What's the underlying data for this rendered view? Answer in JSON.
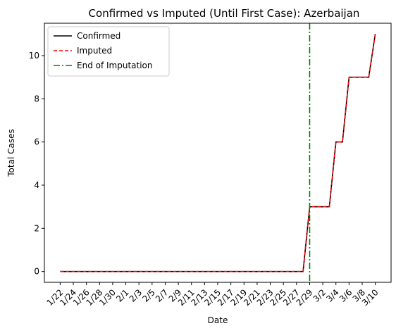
{
  "chart_data": {
    "type": "line",
    "title": "Confirmed vs Imputed (Until First Case): Azerbaijan",
    "xlabel": "Date",
    "ylabel": "Total Cases",
    "ylim": [
      -0.5,
      11.5
    ],
    "yticks": [
      0,
      2,
      4,
      6,
      8,
      10
    ],
    "x": [
      "1/22",
      "1/23",
      "1/24",
      "1/25",
      "1/26",
      "1/27",
      "1/28",
      "1/29",
      "1/30",
      "1/31",
      "2/1",
      "2/2",
      "2/3",
      "2/4",
      "2/5",
      "2/6",
      "2/7",
      "2/8",
      "2/9",
      "2/10",
      "2/11",
      "2/12",
      "2/13",
      "2/14",
      "2/15",
      "2/16",
      "2/17",
      "2/18",
      "2/19",
      "2/20",
      "2/21",
      "2/22",
      "2/23",
      "2/24",
      "2/25",
      "2/26",
      "2/27",
      "2/28",
      "2/29",
      "3/1",
      "3/2",
      "3/3",
      "3/4",
      "3/5",
      "3/6",
      "3/7",
      "3/8",
      "3/9",
      "3/10"
    ],
    "xtick_labels": [
      "1/22",
      "1/24",
      "1/26",
      "1/28",
      "1/30",
      "2/1",
      "2/3",
      "2/5",
      "2/7",
      "2/9",
      "2/11",
      "2/13",
      "2/15",
      "2/17",
      "2/19",
      "2/21",
      "2/23",
      "2/25",
      "2/27",
      "2/29",
      "3/2",
      "3/4",
      "3/6",
      "3/8",
      "3/10"
    ],
    "series": [
      {
        "name": "Confirmed",
        "color": "#000000",
        "style": "solid",
        "values": [
          0,
          0,
          0,
          0,
          0,
          0,
          0,
          0,
          0,
          0,
          0,
          0,
          0,
          0,
          0,
          0,
          0,
          0,
          0,
          0,
          0,
          0,
          0,
          0,
          0,
          0,
          0,
          0,
          0,
          0,
          0,
          0,
          0,
          0,
          0,
          0,
          0,
          0,
          3,
          3,
          3,
          3,
          6,
          6,
          9,
          9,
          9,
          9,
          11
        ]
      },
      {
        "name": "Imputed",
        "color": "#ff0000",
        "style": "dashed",
        "values": [
          0,
          0,
          0,
          0,
          0,
          0,
          0,
          0,
          0,
          0,
          0,
          0,
          0,
          0,
          0,
          0,
          0,
          0,
          0,
          0,
          0,
          0,
          0,
          0,
          0,
          0,
          0,
          0,
          0,
          0,
          0,
          0,
          0,
          0,
          0,
          0,
          0,
          0,
          3,
          3,
          3,
          3,
          6,
          6,
          9,
          9,
          9,
          9,
          11
        ]
      }
    ],
    "vline": {
      "name": "End of Imputation",
      "x": "2/29",
      "color": "#008000",
      "style": "dashdot"
    },
    "legend": "top-left",
    "grid": false
  }
}
